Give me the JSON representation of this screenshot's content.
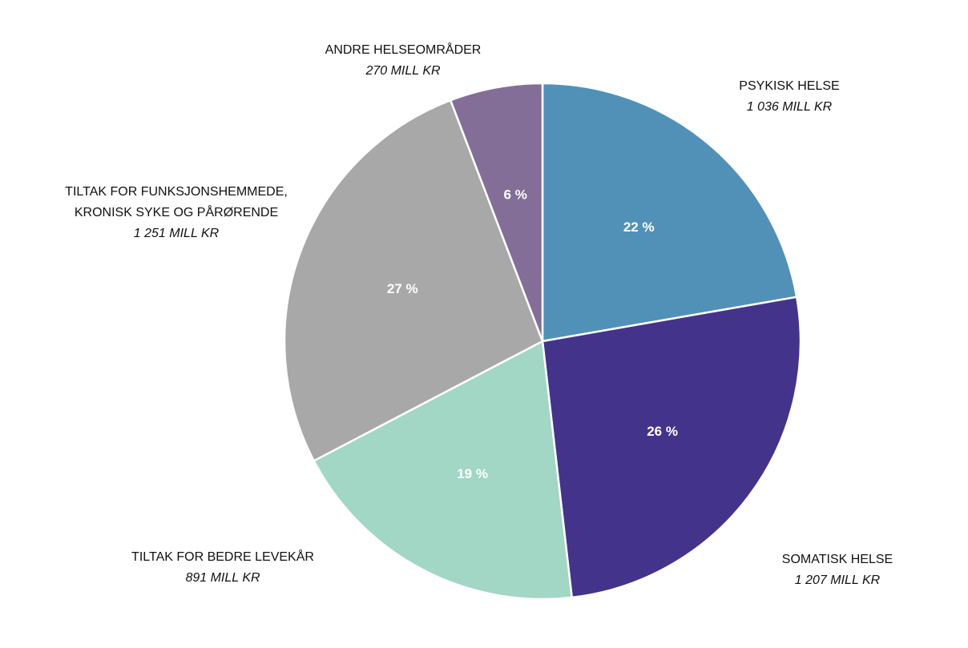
{
  "chart_data": {
    "type": "pie",
    "start_angle_deg": 0,
    "direction": "clockwise",
    "slices": [
      {
        "key": "psykisk-helse",
        "name_lines": [
          "PSYKISK HELSE"
        ],
        "value_label": "1 036 MILL KR",
        "value": 1036,
        "percent_label": "22 %",
        "color": "#5191B8"
      },
      {
        "key": "somatisk-helse",
        "name_lines": [
          "SOMATISK HELSE"
        ],
        "value_label": "1 207 MILL KR",
        "value": 1207,
        "percent_label": "26 %",
        "color": "#44338A"
      },
      {
        "key": "tiltak-for-bedre-levekar",
        "name_lines": [
          "TILTAK FOR BEDRE LEVEKÅR"
        ],
        "value_label": "891 MILL KR",
        "value": 891,
        "percent_label": "19 %",
        "color": "#A2D6C5"
      },
      {
        "key": "tiltak-for-funksjonshemmede",
        "name_lines": [
          "TILTAK FOR FUNKSJONSHEMMEDE,",
          "KRONISK SYKE OG PÅRØRENDE"
        ],
        "value_label": "1 251 MILL KR",
        "value": 1251,
        "percent_label": "27 %",
        "color": "#A8A8A8"
      },
      {
        "key": "andre-helseomrader",
        "name_lines": [
          "ANDRE HELSEOMRÅDER"
        ],
        "value_label": "270 MILL KR",
        "value": 270,
        "percent_label": "6 %",
        "color": "#836E98"
      }
    ]
  }
}
